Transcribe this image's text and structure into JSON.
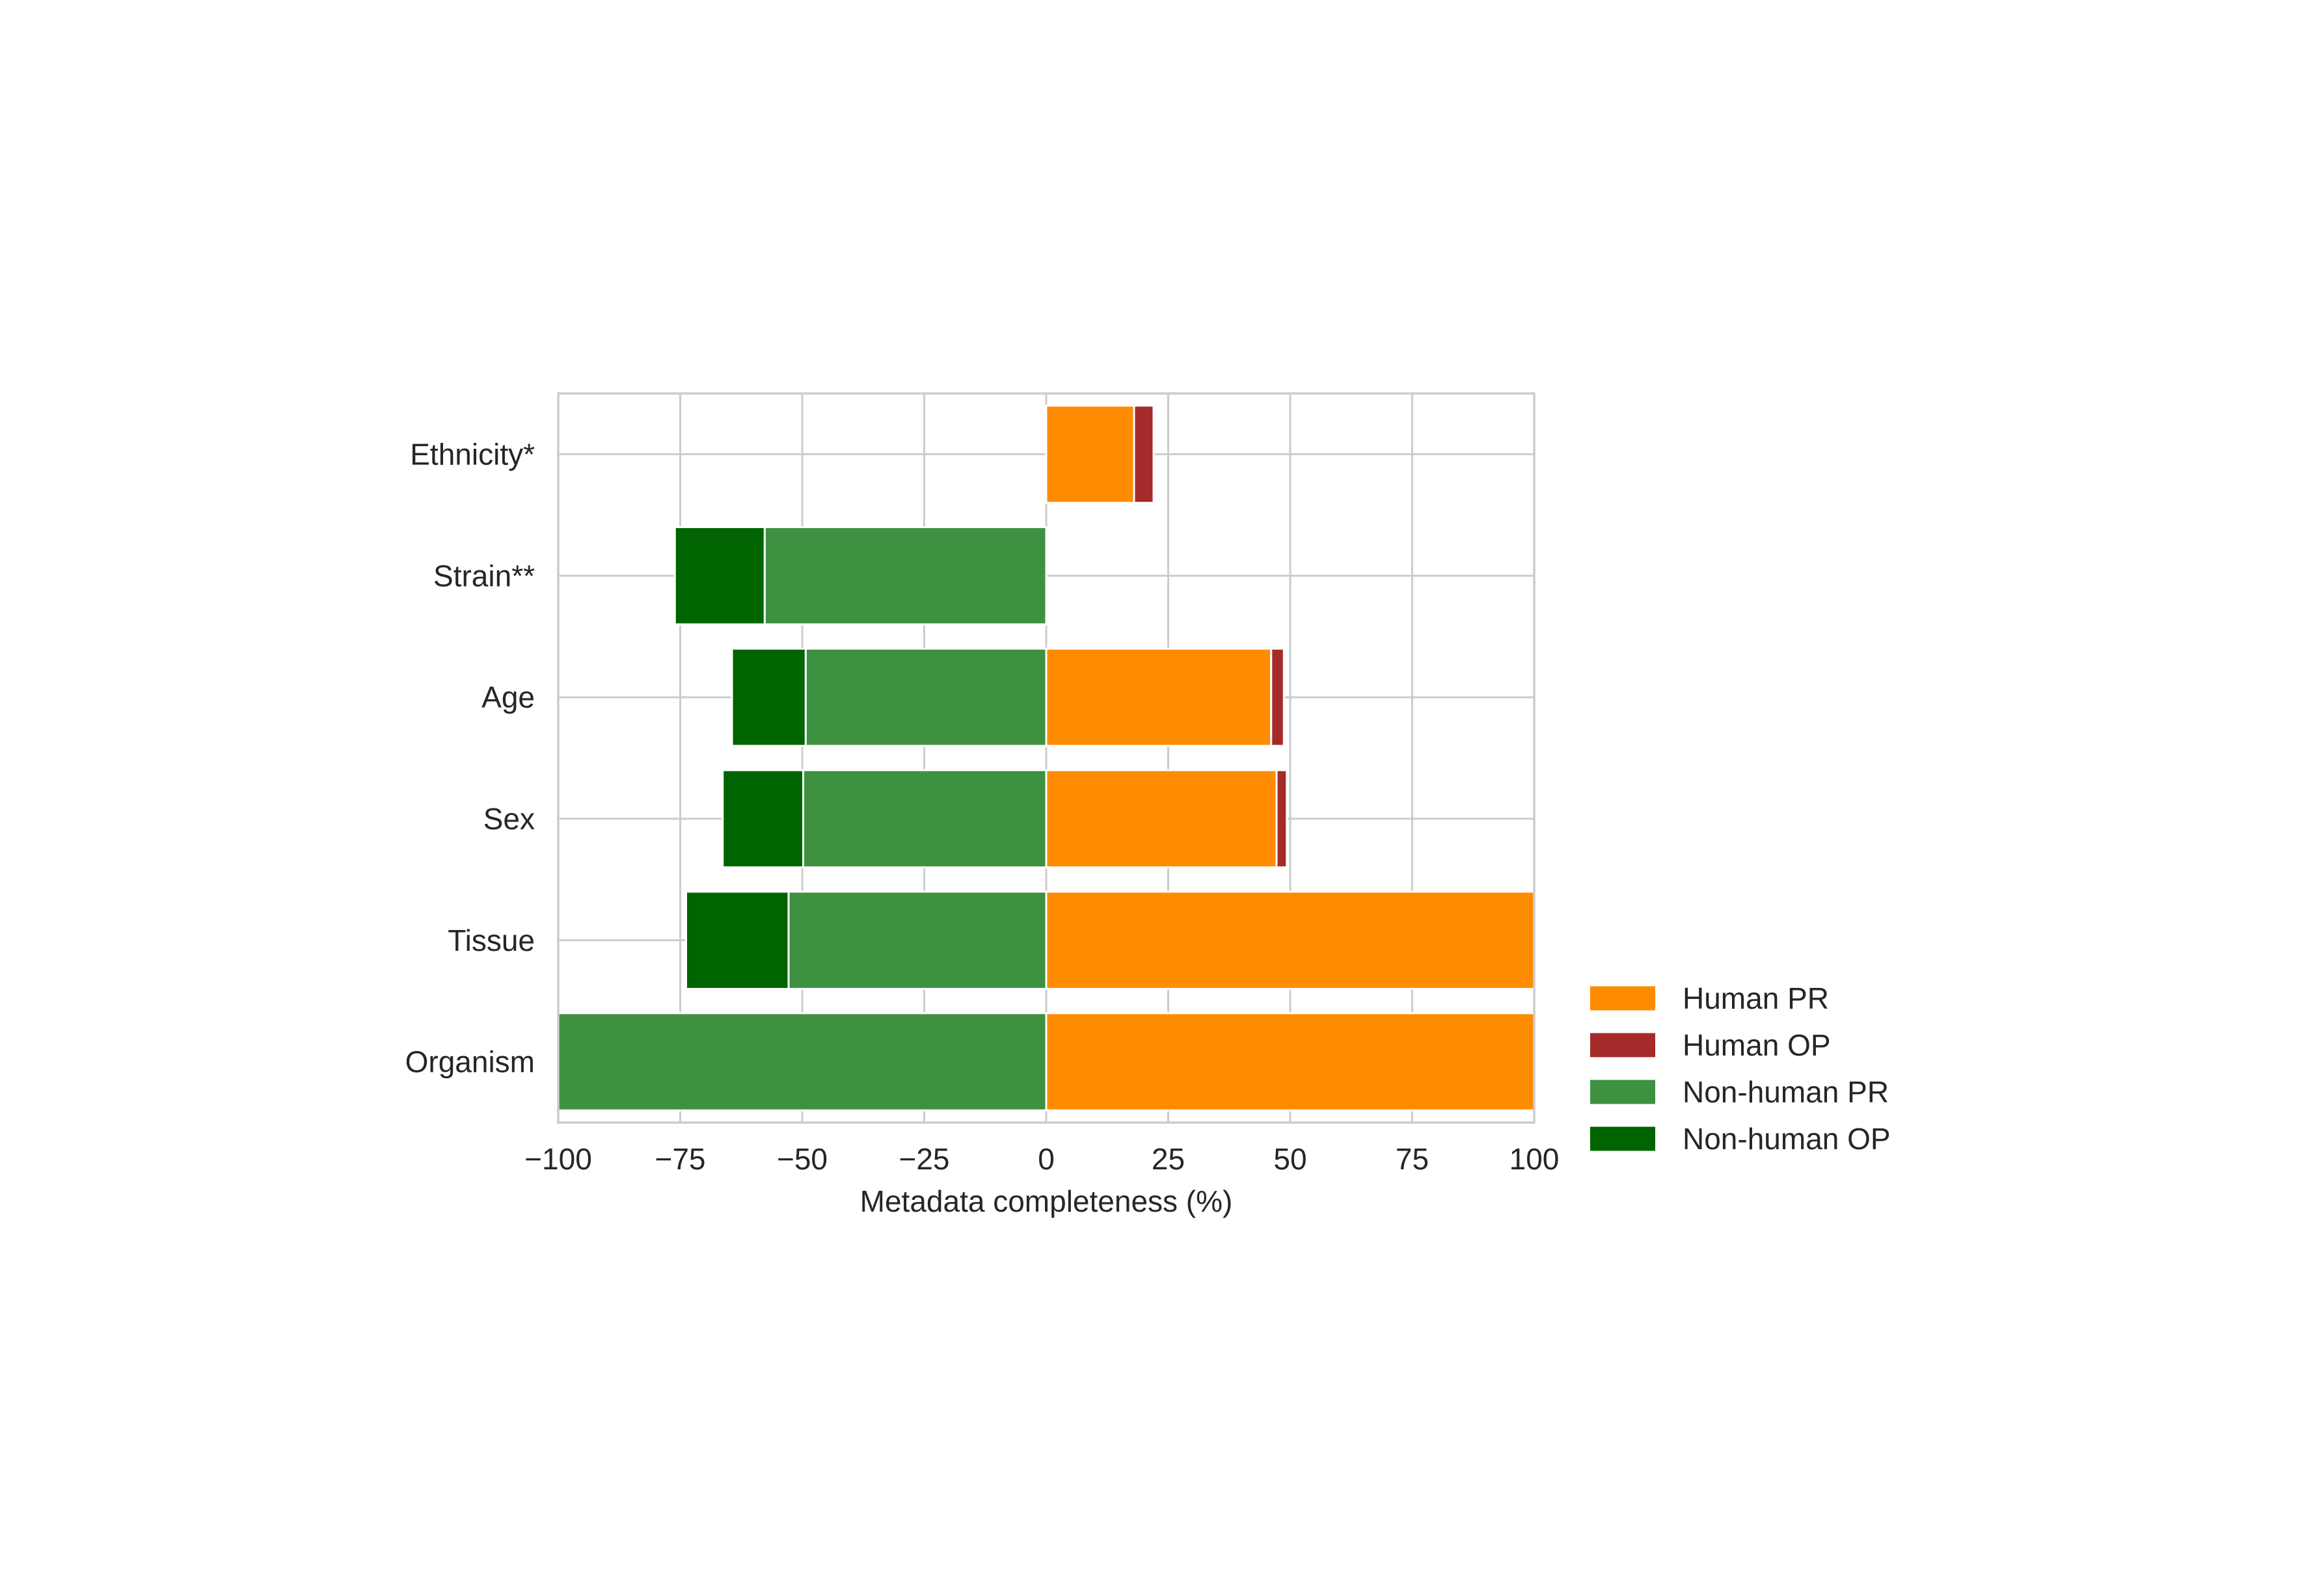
{
  "chart_data": {
    "type": "bar",
    "orientation": "horizontal",
    "stacked": true,
    "title": "",
    "xlabel": "Metadata completeness (%)",
    "ylabel": "",
    "xlim": [
      -100,
      100
    ],
    "xticks": [
      -100,
      -75,
      -50,
      -25,
      0,
      25,
      50,
      75,
      100
    ],
    "xtick_labels": [
      "−100",
      "−75",
      "−50",
      "−25",
      "0",
      "25",
      "50",
      "75",
      "100"
    ],
    "categories": [
      "Organism",
      "Tissue",
      "Sex",
      "Age",
      "Strain**",
      "Ethnicity*"
    ],
    "grid": true,
    "legend_position": "lower-right-outside",
    "series": [
      {
        "name": "Human PR",
        "color": "#ff8c00",
        "side": "positive",
        "values": [
          100,
          100,
          47.2,
          46.1,
          0,
          18
        ]
      },
      {
        "name": "Human OP",
        "color": "#a52a2a",
        "side": "positive",
        "values": [
          0,
          0,
          2.1,
          2.6,
          0,
          4
        ]
      },
      {
        "name": "Non-human PR",
        "color": "#3f9142",
        "side": "negative",
        "values": [
          -100,
          -52.8,
          -49.8,
          -49.3,
          -57.7,
          0
        ]
      },
      {
        "name": "Non-human OP",
        "color": "#006400",
        "side": "negative",
        "values": [
          0,
          -21,
          -16.5,
          -15.1,
          -18.4,
          0
        ]
      }
    ]
  }
}
